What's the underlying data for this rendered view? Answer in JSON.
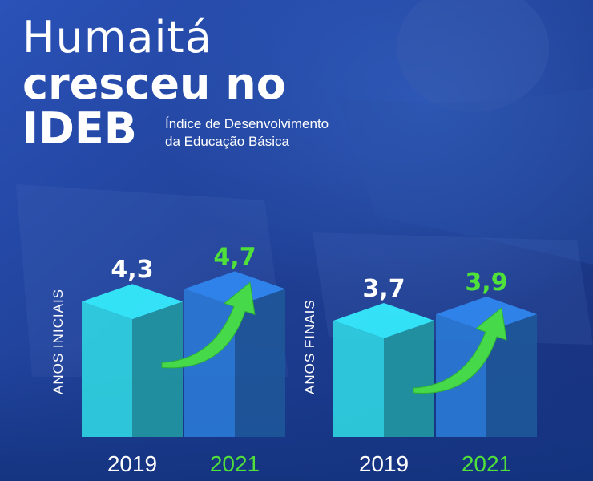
{
  "title": {
    "line1": "Humaitá",
    "line2": "cresceu no",
    "line3": "IDEB",
    "subtitle_line1": "Índice de Desenvolvimento",
    "subtitle_line2": "da Educação Básica"
  },
  "colors": {
    "background": "#1f3f93",
    "bar_2019": "#2fd1e0",
    "bar_2021": "#2a78d4",
    "value_2021": "#4fe03a",
    "arrow": "#46d94a",
    "text": "#ffffff"
  },
  "chart_data": [
    {
      "type": "bar",
      "ylabel": "ANOS INICIAIS",
      "categories": [
        "2019",
        "2021"
      ],
      "values": [
        4.3,
        4.7
      ],
      "value_labels": [
        "4,3",
        "4,7"
      ],
      "growth_arrow": true
    },
    {
      "type": "bar",
      "ylabel": "ANOS FINAIS",
      "categories": [
        "2019",
        "2021"
      ],
      "values": [
        3.7,
        3.9
      ],
      "value_labels": [
        "3,7",
        "3,9"
      ],
      "growth_arrow": true
    }
  ]
}
